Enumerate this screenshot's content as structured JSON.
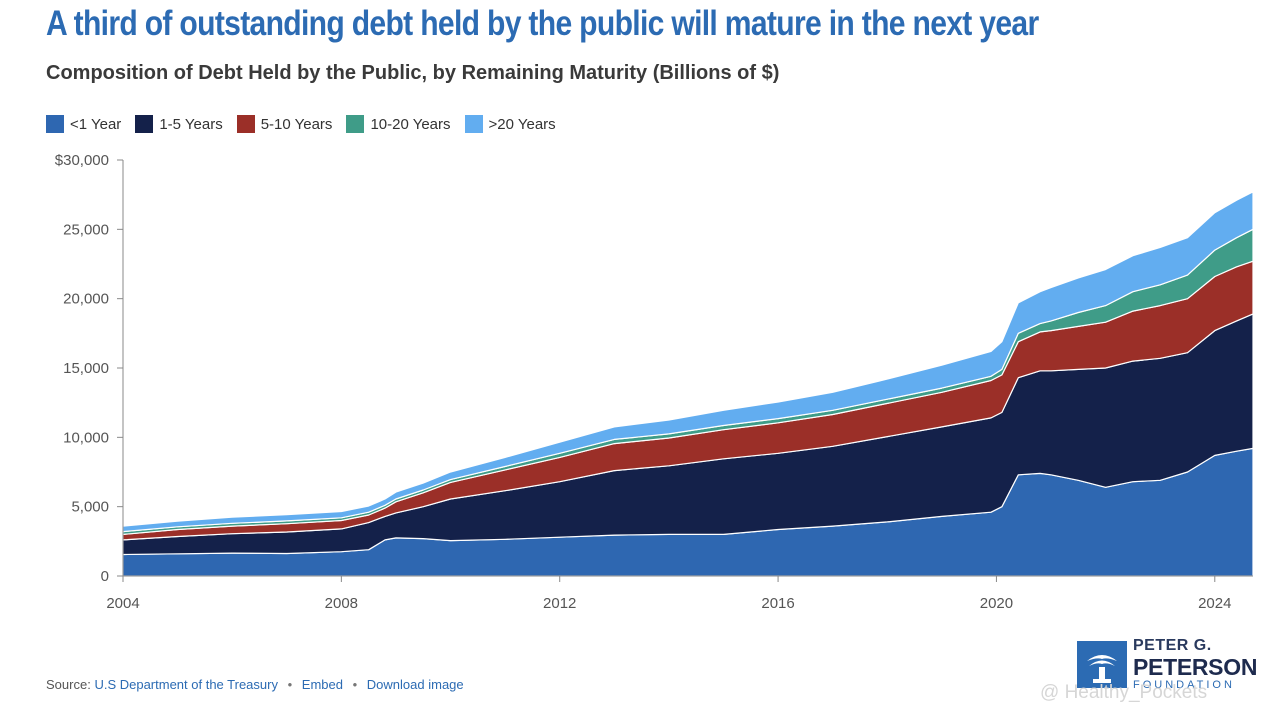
{
  "header": {
    "title": "A third of outstanding debt held by the public will mature in the next year",
    "subtitle": "Composition of Debt Held by the Public, by Remaining Maturity (Billions of $)"
  },
  "footer": {
    "source_label": "Source:",
    "source_link": "U.S Department of the Treasury",
    "embed_label": "Embed",
    "download_label": "Download image",
    "separator": "•"
  },
  "logo": {
    "line1": "PETER G.",
    "line2": "PETERSON",
    "line3": "FOUNDATION"
  },
  "watermark": "@ Healthy_Pockets",
  "colors": {
    "lt1": "#2e67b1",
    "y1_5": "#14214a",
    "y5_10": "#9b2f28",
    "y10_20": "#3f9c88",
    "y20p": "#62adf0",
    "title": "#2c6bb3"
  },
  "chart_data": {
    "type": "area",
    "stacked": true,
    "title": "Composition of Debt Held by the Public, by Remaining Maturity (Billions of $)",
    "xlabel": "",
    "ylabel": "",
    "xlim": [
      2004,
      2024.7
    ],
    "ylim": [
      0,
      30000
    ],
    "y_ticks": [
      0,
      5000,
      10000,
      15000,
      20000,
      25000,
      30000
    ],
    "y_tick_labels": [
      "0",
      "5,000",
      "10,000",
      "15,000",
      "20,000",
      "25,000",
      "$30,000"
    ],
    "x_ticks": [
      2004,
      2008,
      2012,
      2016,
      2020,
      2024
    ],
    "x_tick_labels": [
      "2004",
      "2008",
      "2012",
      "2016",
      "2020",
      "2024"
    ],
    "grid": false,
    "legend_position": "top-left",
    "x": [
      2004,
      2005,
      2006,
      2007,
      2008,
      2008.5,
      2008.8,
      2009,
      2009.5,
      2010,
      2011,
      2012,
      2013,
      2014,
      2015,
      2016,
      2017,
      2018,
      2019,
      2019.9,
      2020.1,
      2020.4,
      2020.8,
      2021,
      2021.5,
      2022,
      2022.5,
      2023,
      2023.5,
      2024,
      2024.4,
      2024.7
    ],
    "series": [
      {
        "name": "<1 Year",
        "color_key": "lt1",
        "values": [
          1550,
          1600,
          1650,
          1620,
          1750,
          1900,
          2600,
          2750,
          2700,
          2550,
          2650,
          2800,
          2950,
          3000,
          3000,
          3350,
          3600,
          3900,
          4300,
          4600,
          5000,
          7300,
          7400,
          7300,
          6900,
          6400,
          6800,
          6900,
          7500,
          8700,
          9000,
          9200
        ]
      },
      {
        "name": "1-5 Years",
        "color_key": "y1_5",
        "values": [
          1050,
          1250,
          1400,
          1550,
          1650,
          1950,
          1700,
          1800,
          2300,
          3000,
          3500,
          4000,
          4650,
          4950,
          5450,
          5500,
          5750,
          6150,
          6450,
          6800,
          6800,
          7000,
          7400,
          7500,
          8000,
          8600,
          8700,
          8800,
          8600,
          9000,
          9400,
          9700
        ]
      },
      {
        "name": "5-10 Years",
        "color_key": "y5_10",
        "values": [
          400,
          500,
          550,
          600,
          600,
          550,
          600,
          800,
          1000,
          1200,
          1500,
          1750,
          1950,
          2000,
          2100,
          2200,
          2300,
          2400,
          2500,
          2700,
          2700,
          2600,
          2800,
          2900,
          3100,
          3300,
          3600,
          3800,
          3900,
          3900,
          3900,
          3800
        ]
      },
      {
        "name": "10-20 Years",
        "color_key": "y10_20",
        "values": [
          200,
          200,
          200,
          200,
          200,
          200,
          200,
          200,
          200,
          200,
          250,
          300,
          300,
          300,
          300,
          300,
          300,
          300,
          300,
          300,
          400,
          600,
          600,
          700,
          1000,
          1200,
          1400,
          1500,
          1700,
          1900,
          2100,
          2300
        ]
      },
      {
        "name": ">20 Years",
        "color_key": "y20p",
        "values": [
          400,
          400,
          450,
          450,
          450,
          450,
          450,
          500,
          500,
          550,
          650,
          800,
          900,
          1000,
          1100,
          1200,
          1300,
          1450,
          1650,
          1800,
          2000,
          2200,
          2300,
          2400,
          2500,
          2600,
          2600,
          2700,
          2700,
          2700,
          2700,
          2700
        ]
      }
    ]
  }
}
